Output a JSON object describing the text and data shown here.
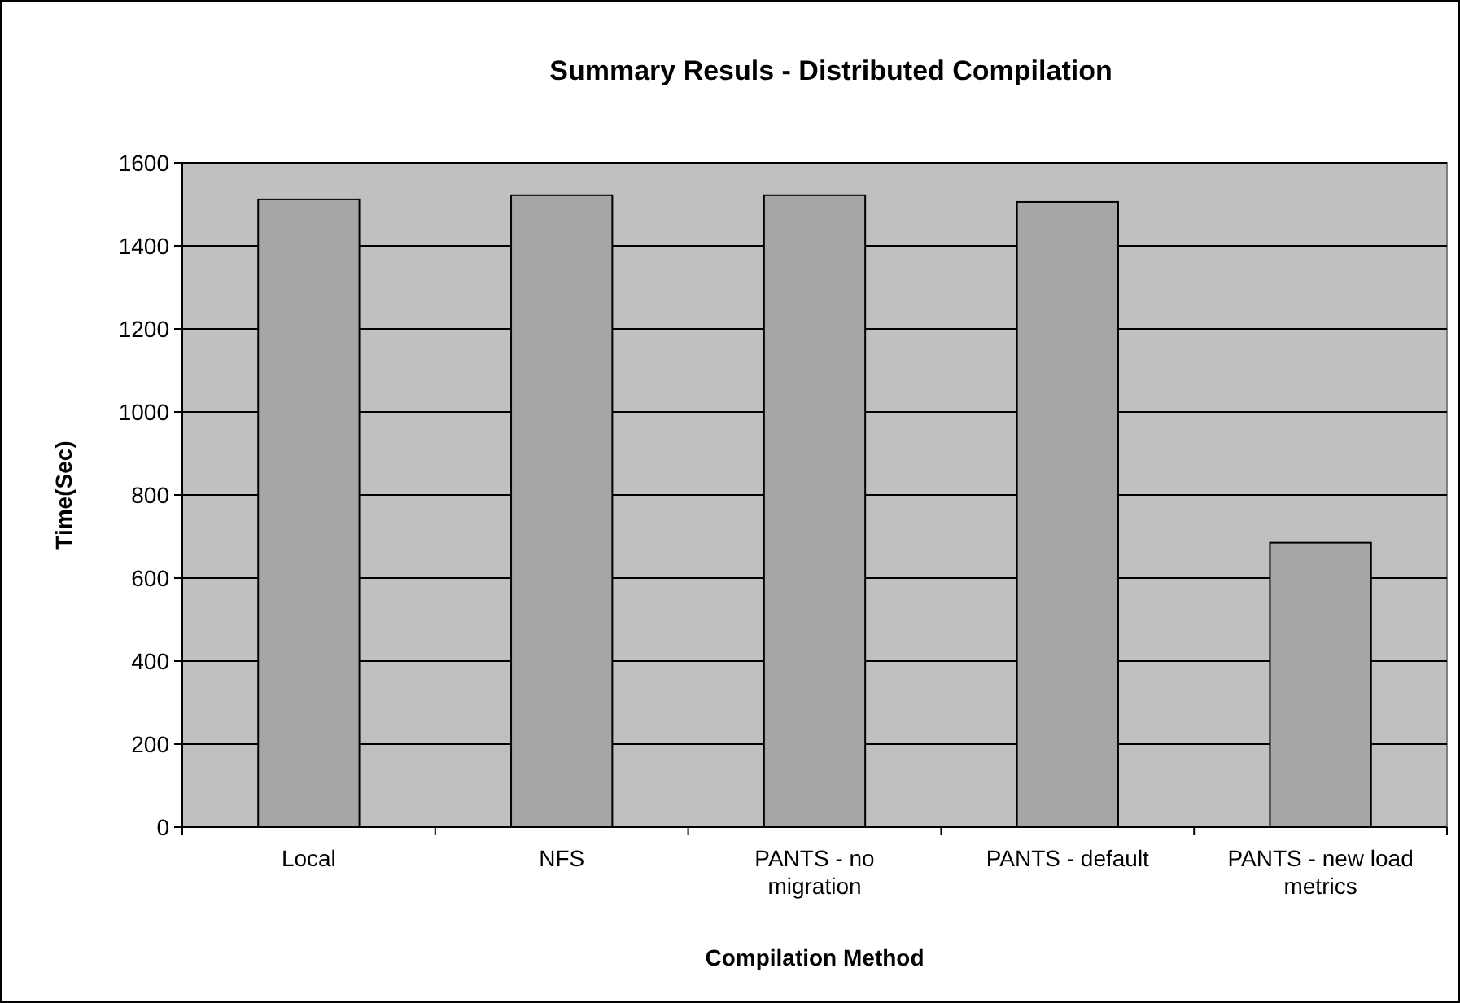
{
  "chart_data": {
    "type": "bar",
    "title": "Summary Resuls - Distributed Compilation",
    "xlabel": "Compilation Method",
    "ylabel": "Time(Sec)",
    "categories": [
      "Local",
      "NFS",
      "PANTS - no migration",
      "PANTS - default",
      "PANTS - new load metrics"
    ],
    "values": [
      1512,
      1522,
      1522,
      1506,
      685
    ],
    "color": "#a6a6a6",
    "ylim": [
      0,
      1600
    ],
    "yticks": [
      0,
      200,
      400,
      600,
      800,
      1000,
      1200,
      1400,
      1600
    ],
    "grid": "y"
  }
}
